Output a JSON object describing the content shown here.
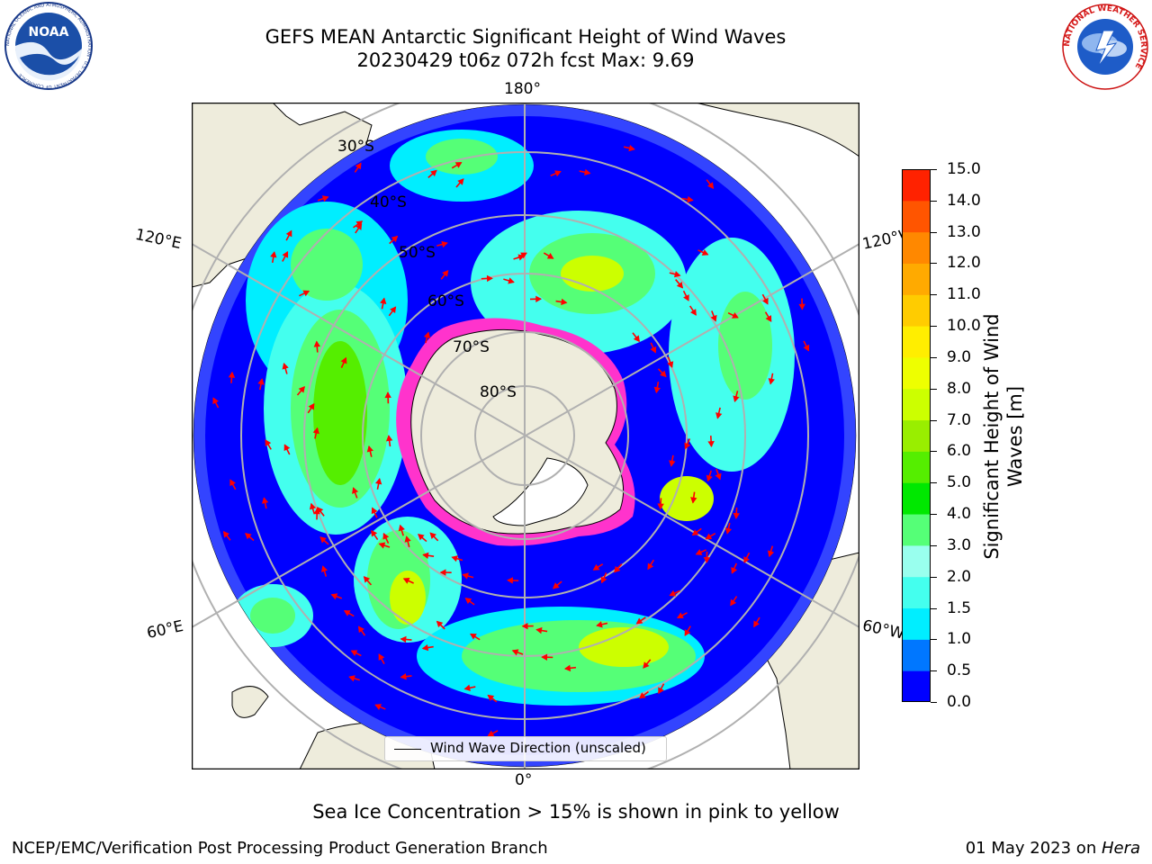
{
  "title": {
    "line1": "GEFS MEAN Antarctic Significant Height of Wind Waves",
    "line2": "20230429 t06z 072h fcst   Max: 9.69"
  },
  "logos": {
    "noaa_text": "NOAA",
    "noaa_ring": "NATIONAL OCEANIC AND ATMOSPHERIC ADMINISTRATION · U.S. DEPARTMENT OF COMMERCE",
    "nws_ring": "NATIONAL WEATHER SERVICE"
  },
  "map": {
    "lon_labels": {
      "top": "180°",
      "bottom": "0°",
      "upper_left": "120°E",
      "upper_right": "120°W",
      "lower_left": "60°E",
      "lower_right": "60°W"
    },
    "lat_labels": [
      "30°S",
      "40°S",
      "50°S",
      "60°S",
      "70°S",
      "80°S"
    ],
    "colors": {
      "land": "#EEECDC",
      "ice": "#FF33CC",
      "arrow": "#FF0000",
      "grid": "#B0B0B0"
    }
  },
  "colorbar": {
    "label": "Significant Height of Wind Waves [m]",
    "label_line1": "Significant Height of Wind",
    "label_line2": "Waves [m]",
    "ticks": [
      "0.0",
      "0.5",
      "1.0",
      "1.5",
      "2.0",
      "3.0",
      "4.0",
      "5.0",
      "6.0",
      "7.0",
      "8.0",
      "9.0",
      "10.0",
      "11.0",
      "12.0",
      "13.0",
      "14.0",
      "15.0"
    ],
    "colors": [
      "#0000FF",
      "#0077FF",
      "#00EEFF",
      "#44FFEE",
      "#99FFEE",
      "#55FF77",
      "#00E800",
      "#55EE00",
      "#99EE00",
      "#CCFF00",
      "#EEFF00",
      "#FFEE00",
      "#FFCC00",
      "#FFAA00",
      "#FF8800",
      "#FF5500",
      "#FF2200"
    ]
  },
  "legend": {
    "label": "Wind Wave Direction (unscaled)"
  },
  "note": "Sea Ice Concentration > 15% is shown in pink to yellow",
  "footer": {
    "left": "NCEP/EMC/Verification Post Processing Product Generation Branch",
    "right_date": "01 May 2023 on ",
    "right_host": "Hera"
  }
}
